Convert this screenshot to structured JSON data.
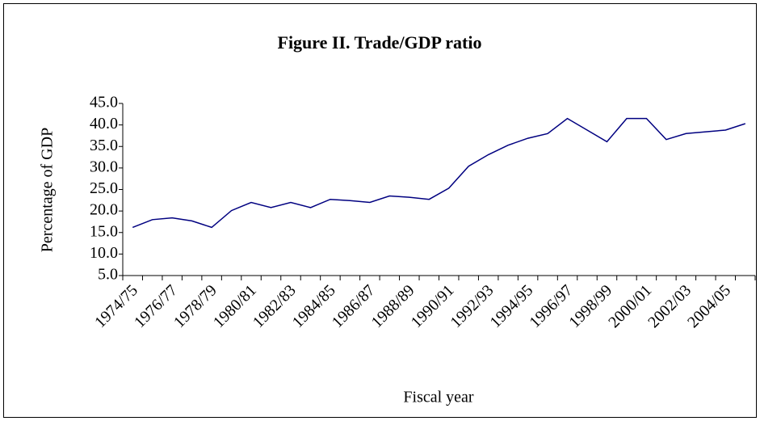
{
  "chart_data": {
    "type": "line",
    "title": "Figure II. Trade/GDP ratio",
    "ylabel": "Percentage of GDP",
    "xlabel": "Fiscal year",
    "categories": [
      "1974/75",
      null,
      "1976/77",
      null,
      "1978/79",
      null,
      "1980/81",
      null,
      "1982/83",
      null,
      "1984/85",
      null,
      "1986/87",
      null,
      "1988/89",
      null,
      "1990/91",
      null,
      "1992/93",
      null,
      "1994/95",
      null,
      "1996/97",
      null,
      "1998/99",
      null,
      "2000/01",
      null,
      "2002/03",
      null,
      "2004/05",
      null
    ],
    "series": [
      {
        "name": "Trade/GDP ratio",
        "color": "#000080",
        "values": [
          16.2,
          18.0,
          18.4,
          17.7,
          16.2,
          20.1,
          22.0,
          20.8,
          22.0,
          20.8,
          22.7,
          22.4,
          22.0,
          23.5,
          23.2,
          22.7,
          25.3,
          30.4,
          33.1,
          35.3,
          36.9,
          38.0,
          41.5,
          38.8,
          36.1,
          41.5,
          41.5,
          36.6,
          38.0,
          38.4,
          38.8,
          40.3
        ]
      }
    ],
    "ylim": [
      5,
      45
    ],
    "yticks": [
      {
        "value": 5,
        "label": "5.0"
      },
      {
        "value": 10,
        "label": "10.0"
      },
      {
        "value": 15,
        "label": "15.0"
      },
      {
        "value": 20,
        "label": "20.0"
      },
      {
        "value": 25,
        "label": "25.0"
      },
      {
        "value": 30,
        "label": "30.0"
      },
      {
        "value": 35,
        "label": "35.0"
      },
      {
        "value": 40,
        "label": "40.0"
      },
      {
        "value": 45,
        "label": "45.0"
      }
    ],
    "grid": false
  }
}
